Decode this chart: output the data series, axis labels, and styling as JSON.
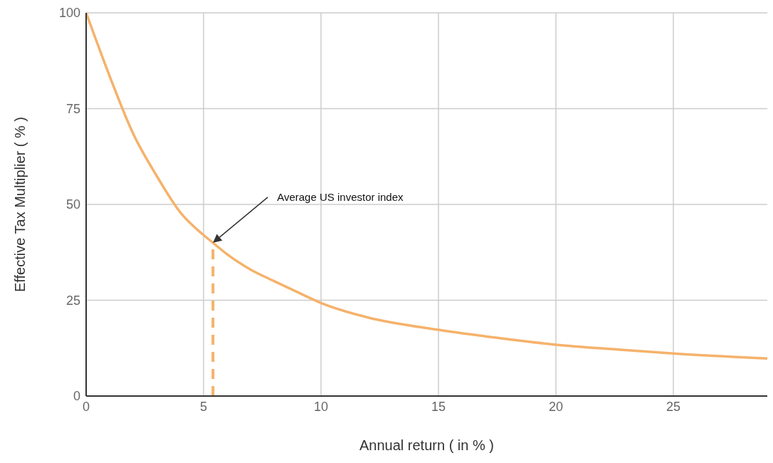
{
  "chart_data": {
    "type": "line",
    "xlabel": "Annual return  ( in % )",
    "ylabel": "Effective Tax Multiplier ( % )",
    "x": [
      0,
      1,
      2,
      3,
      4,
      5,
      5.4,
      6,
      7,
      8,
      9,
      10,
      12,
      15,
      17.5,
      20,
      22.5,
      25,
      29
    ],
    "series": [
      {
        "color": "#f5b26b",
        "values": [
          100,
          83.5,
          68.5,
          57.5,
          48,
          42,
          40,
          37,
          33,
          30,
          27.1,
          24.3,
          20.5,
          17.3,
          15.2,
          13.4,
          12.2,
          11.1,
          9.8
        ]
      },
      {
        "color": "#f5b26b",
        "x": [
          5.4,
          5.4
        ],
        "values": [
          0,
          40
        ],
        "line_style": "dashed"
      }
    ],
    "annotations": [
      "Average US investor index"
    ],
    "xlim": [
      0,
      29
    ],
    "xticks": [
      0,
      5,
      10,
      15,
      20,
      25
    ],
    "ylim": [
      0,
      100
    ],
    "yticks": [
      0,
      25,
      50,
      75,
      100
    ],
    "grid": true,
    "marker": "none",
    "line_style": "solid"
  }
}
